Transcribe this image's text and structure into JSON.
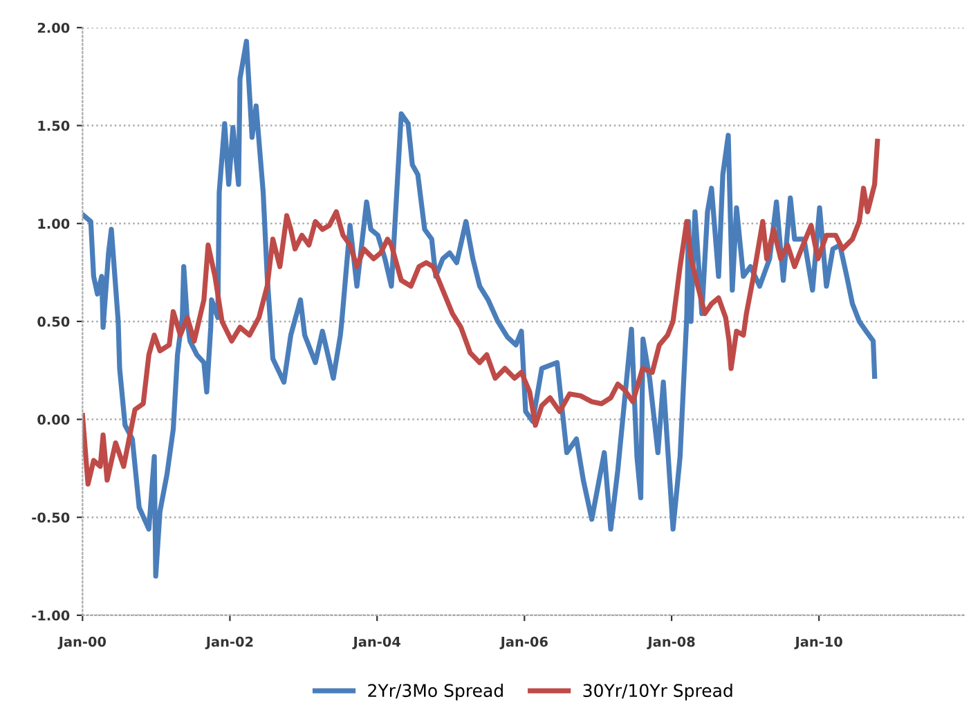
{
  "chart_data": {
    "type": "line",
    "xlim": [
      "2000-01-01",
      "2012-01-01"
    ],
    "xticks": [
      {
        "value": "2000-01-01",
        "label": "Jan-00"
      },
      {
        "value": "2002-01-01",
        "label": "Jan-02"
      },
      {
        "value": "2004-01-01",
        "label": "Jan-04"
      },
      {
        "value": "2006-01-01",
        "label": "Jan-06"
      },
      {
        "value": "2008-01-01",
        "label": "Jan-08"
      },
      {
        "value": "2010-01-01",
        "label": "Jan-10"
      }
    ],
    "ylim": [
      -1,
      2
    ],
    "yticks": [
      {
        "value": -1,
        "label": "-1.00"
      },
      {
        "value": -0.5,
        "label": "-0.50"
      },
      {
        "value": 0,
        "label": "0.00"
      },
      {
        "value": 0.5,
        "label": "0.50"
      },
      {
        "value": 1,
        "label": "1.00"
      },
      {
        "value": 1.5,
        "label": "1.50"
      },
      {
        "value": 2,
        "label": "2.00"
      }
    ],
    "grid": "y",
    "legend": "bottom",
    "marker": "none",
    "line_style": "solid",
    "series": [
      {
        "name": "2Yr/3Mo Spread",
        "color": "#4a7ebb",
        "x": [
          "2000-01-08",
          "2000-02-11",
          "2000-02-25",
          "2000-03-15",
          "2000-04-05",
          "2000-04-12",
          "2000-05-09",
          "2000-05-23",
          "2000-06-13",
          "2000-06-26",
          "2000-07-03",
          "2000-07-30",
          "2000-09-04",
          "2000-10-08",
          "2000-11-25",
          "2000-12-22",
          "2000-12-29",
          "2001-01-19",
          "2001-02-23",
          "2001-03-26",
          "2001-04-16",
          "2001-05-10",
          "2001-05-17",
          "2001-06-04",
          "2001-06-17",
          "2001-07-21",
          "2001-08-25",
          "2001-09-08",
          "2001-09-28",
          "2001-10-02",
          "2001-11-02",
          "2001-11-09",
          "2001-12-06",
          "2001-12-26",
          "2002-01-16",
          "2002-02-13",
          "2002-02-20",
          "2002-03-24",
          "2002-04-21",
          "2002-05-11",
          "2002-06-15",
          "2002-07-05",
          "2002-08-02",
          "2002-09-26",
          "2002-10-30",
          "2002-12-17",
          "2003-01-07",
          "2003-03-01",
          "2003-04-05",
          "2003-05-29",
          "2003-07-03",
          "2003-07-10",
          "2003-08-20",
          "2003-09-23",
          "2003-11-10",
          "2003-12-01",
          "2004-01-05",
          "2004-02-09",
          "2004-03-12",
          "2004-04-30",
          "2004-06-03",
          "2004-06-24",
          "2004-07-21",
          "2004-08-24",
          "2004-09-28",
          "2004-10-18",
          "2004-11-22",
          "2004-12-26",
          "2005-01-30",
          "2005-03-17",
          "2005-04-20",
          "2005-05-24",
          "2005-07-05",
          "2005-08-22",
          "2005-10-09",
          "2005-11-20",
          "2005-12-17",
          "2006-01-07",
          "2006-02-11",
          "2006-03-28",
          "2006-06-12",
          "2006-07-30",
          "2006-09-16",
          "2006-10-20",
          "2006-12-01",
          "2007-02-01",
          "2007-03-05",
          "2007-04-09",
          "2007-06-16",
          "2007-07-13",
          "2007-08-01",
          "2007-08-12",
          "2007-09-14",
          "2007-10-25",
          "2007-11-21",
          "2008-01-08",
          "2008-02-12",
          "2008-03-16",
          "2008-03-25",
          "2008-04-06",
          "2008-04-26",
          "2008-05-30",
          "2008-06-27",
          "2008-07-17",
          "2008-08-21",
          "2008-09-11",
          "2008-10-08",
          "2008-10-28",
          "2008-11-18",
          "2008-12-22",
          "2009-01-26",
          "2009-03-13",
          "2009-05-01",
          "2009-06-04",
          "2009-07-08",
          "2009-08-12",
          "2009-09-02",
          "2009-10-19",
          "2009-11-30",
          "2010-01-04",
          "2010-02-07",
          "2010-03-11",
          "2010-04-15",
          "2010-05-19",
          "2010-06-16",
          "2010-07-20",
          "2010-08-23",
          "2010-09-27",
          "2010-10-04"
        ],
        "values": [
          1.04,
          1.01,
          0.73,
          0.64,
          0.73,
          0.47,
          0.85,
          0.97,
          0.68,
          0.5,
          0.26,
          -0.03,
          -0.1,
          -0.45,
          -0.56,
          -0.19,
          -0.8,
          -0.47,
          -0.28,
          -0.05,
          0.33,
          0.52,
          0.78,
          0.5,
          0.4,
          0.33,
          0.29,
          0.14,
          0.47,
          0.61,
          0.52,
          1.16,
          1.51,
          1.2,
          1.49,
          1.2,
          1.74,
          1.93,
          1.44,
          1.6,
          1.16,
          0.73,
          0.31,
          0.19,
          0.43,
          0.61,
          0.43,
          0.29,
          0.45,
          0.21,
          0.43,
          0.5,
          0.99,
          0.68,
          1.11,
          0.97,
          0.94,
          0.82,
          0.68,
          1.56,
          1.51,
          1.3,
          1.25,
          0.97,
          0.92,
          0.73,
          0.82,
          0.85,
          0.8,
          1.01,
          0.82,
          0.68,
          0.61,
          0.5,
          0.42,
          0.38,
          0.45,
          0.04,
          -0.01,
          0.26,
          0.29,
          -0.17,
          -0.1,
          -0.31,
          -0.51,
          -0.17,
          -0.56,
          -0.26,
          0.46,
          -0.19,
          -0.4,
          0.41,
          0.21,
          -0.17,
          0.19,
          -0.56,
          -0.19,
          0.52,
          1.01,
          0.5,
          1.06,
          0.54,
          1.06,
          1.18,
          0.73,
          1.25,
          1.45,
          0.66,
          1.08,
          0.73,
          0.78,
          0.68,
          0.82,
          1.11,
          0.71,
          1.13,
          0.92,
          0.92,
          0.66,
          1.08,
          0.68,
          0.87,
          0.89,
          0.73,
          0.59,
          0.5,
          0.45,
          0.4,
          0.22
        ]
      },
      {
        "name": "30Yr/10Yr Spread",
        "color": "#be4b48",
        "x": [
          "2000-01-01",
          "2000-01-28",
          "2000-02-25",
          "2000-03-29",
          "2000-04-12",
          "2000-05-02",
          "2000-06-13",
          "2000-07-23",
          "2000-09-17",
          "2000-10-28",
          "2000-11-25",
          "2000-12-22",
          "2001-01-19",
          "2001-03-06",
          "2001-03-26",
          "2001-04-30",
          "2001-06-04",
          "2001-07-08",
          "2001-08-25",
          "2001-09-15",
          "2001-10-19",
          "2001-11-23",
          "2002-01-10",
          "2002-02-20",
          "2002-04-08",
          "2002-05-25",
          "2002-07-05",
          "2002-08-02",
          "2002-09-06",
          "2002-10-10",
          "2002-10-30",
          "2002-11-20",
          "2002-12-24",
          "2003-01-28",
          "2003-03-01",
          "2003-04-05",
          "2003-05-09",
          "2003-06-13",
          "2003-07-16",
          "2003-08-20",
          "2003-09-23",
          "2003-10-27",
          "2003-12-15",
          "2004-01-19",
          "2004-02-22",
          "2004-03-12",
          "2004-04-30",
          "2004-06-17",
          "2004-07-27",
          "2004-09-01",
          "2004-10-05",
          "2004-11-22",
          "2005-01-09",
          "2005-02-20",
          "2005-04-07",
          "2005-05-24",
          "2005-06-28",
          "2005-08-09",
          "2005-09-26",
          "2005-11-13",
          "2005-12-17",
          "2006-01-27",
          "2006-02-24",
          "2006-03-28",
          "2006-05-08",
          "2006-06-25",
          "2006-08-13",
          "2006-10-07",
          "2006-12-01",
          "2007-01-18",
          "2007-03-05",
          "2007-04-09",
          "2007-05-13",
          "2007-06-23",
          "2007-08-10",
          "2007-09-27",
          "2007-11-01",
          "2007-12-12",
          "2008-01-08",
          "2008-02-12",
          "2008-03-16",
          "2008-04-06",
          "2008-05-10",
          "2008-06-14",
          "2008-07-17",
          "2008-08-21",
          "2008-09-25",
          "2008-10-12",
          "2008-10-22",
          "2008-11-18",
          "2008-12-22",
          "2009-01-06",
          "2009-02-10",
          "2009-03-28",
          "2009-04-17",
          "2009-05-21",
          "2009-06-25",
          "2009-07-29",
          "2009-09-02",
          "2009-10-06",
          "2009-11-23",
          "2009-12-27",
          "2010-02-07",
          "2010-03-25",
          "2010-04-28",
          "2010-06-16",
          "2010-07-20",
          "2010-08-10",
          "2010-08-30",
          "2010-10-04",
          "2010-10-18"
        ],
        "values": [
          0.02,
          -0.33,
          -0.21,
          -0.24,
          -0.08,
          -0.31,
          -0.12,
          -0.24,
          0.05,
          0.08,
          0.33,
          0.43,
          0.35,
          0.38,
          0.55,
          0.43,
          0.52,
          0.4,
          0.61,
          0.89,
          0.73,
          0.5,
          0.4,
          0.47,
          0.43,
          0.52,
          0.68,
          0.92,
          0.78,
          1.04,
          0.97,
          0.87,
          0.94,
          0.89,
          1.01,
          0.97,
          0.99,
          1.06,
          0.94,
          0.89,
          0.78,
          0.87,
          0.82,
          0.85,
          0.92,
          0.89,
          0.71,
          0.68,
          0.78,
          0.8,
          0.78,
          0.66,
          0.54,
          0.47,
          0.34,
          0.29,
          0.33,
          0.21,
          0.26,
          0.21,
          0.24,
          0.14,
          -0.03,
          0.07,
          0.11,
          0.04,
          0.13,
          0.12,
          0.09,
          0.08,
          0.11,
          0.18,
          0.15,
          0.09,
          0.26,
          0.24,
          0.38,
          0.43,
          0.5,
          0.78,
          1.01,
          0.82,
          0.68,
          0.54,
          0.59,
          0.62,
          0.52,
          0.4,
          0.26,
          0.45,
          0.43,
          0.54,
          0.73,
          1.01,
          0.82,
          0.97,
          0.82,
          0.89,
          0.78,
          0.87,
          0.99,
          0.82,
          0.94,
          0.94,
          0.87,
          0.92,
          1.01,
          1.18,
          1.06,
          1.2,
          1.42
        ]
      }
    ]
  }
}
